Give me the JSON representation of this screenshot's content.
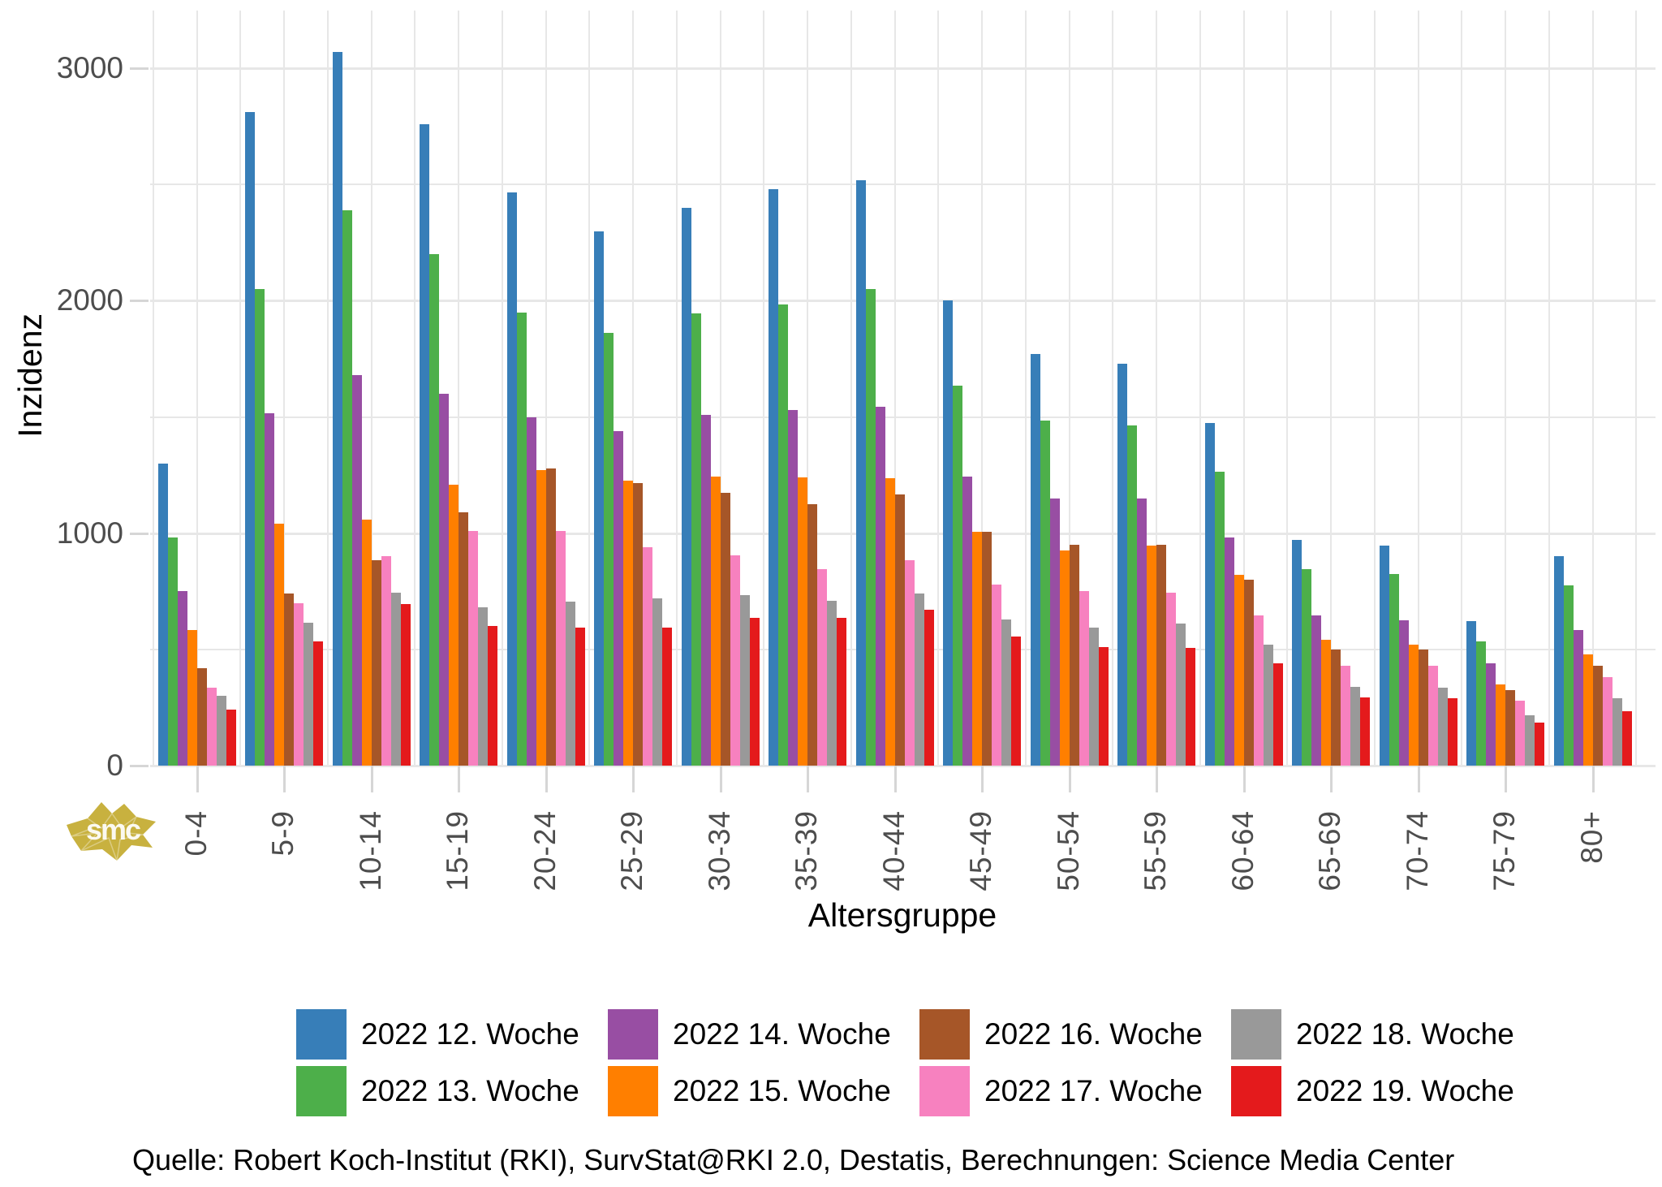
{
  "chart_data": {
    "type": "bar",
    "title": "",
    "xlabel": "Altersgruppe",
    "ylabel": "Inzidenz",
    "ylim": [
      0,
      3250
    ],
    "yticks": [
      0,
      1000,
      2000,
      3000
    ],
    "gridline_step": 500,
    "grid": true,
    "legend_position": "bottom",
    "categories": [
      "0-4",
      "5-9",
      "10-14",
      "15-19",
      "20-24",
      "25-29",
      "30-34",
      "35-39",
      "40-44",
      "45-49",
      "50-54",
      "55-59",
      "60-64",
      "65-69",
      "70-74",
      "75-79",
      "80+"
    ],
    "series": [
      {
        "name": "2022 12. Woche",
        "color": "#377EB8",
        "values": [
          1300,
          2810,
          3070,
          2760,
          2465,
          2300,
          2400,
          2480,
          2520,
          2000,
          1770,
          1730,
          1475,
          970,
          945,
          620,
          900
        ]
      },
      {
        "name": "2022 13. Woche",
        "color": "#4DAF4A",
        "values": [
          980,
          2050,
          2390,
          2200,
          1950,
          1860,
          1945,
          1985,
          2050,
          1635,
          1485,
          1465,
          1265,
          845,
          825,
          535,
          775
        ]
      },
      {
        "name": "2022 14. Woche",
        "color": "#984EA3",
        "values": [
          750,
          1515,
          1680,
          1600,
          1500,
          1440,
          1510,
          1530,
          1545,
          1245,
          1150,
          1150,
          980,
          645,
          625,
          440,
          585
        ]
      },
      {
        "name": "2022 15. Woche",
        "color": "#FF7F00",
        "values": [
          585,
          1040,
          1060,
          1210,
          1270,
          1225,
          1245,
          1240,
          1235,
          1005,
          925,
          945,
          820,
          540,
          520,
          350,
          480
        ]
      },
      {
        "name": "2022 16. Woche",
        "color": "#A65628",
        "values": [
          420,
          740,
          885,
          1090,
          1280,
          1215,
          1175,
          1125,
          1165,
          1005,
          950,
          950,
          800,
          500,
          500,
          325,
          430
        ]
      },
      {
        "name": "2022 17. Woche",
        "color": "#F781BF",
        "values": [
          335,
          700,
          900,
          1010,
          1010,
          940,
          905,
          845,
          885,
          780,
          750,
          745,
          645,
          430,
          430,
          280,
          380
        ]
      },
      {
        "name": "2022 18. Woche",
        "color": "#999999",
        "values": [
          300,
          615,
          745,
          680,
          705,
          720,
          735,
          710,
          740,
          630,
          595,
          610,
          520,
          340,
          335,
          215,
          290
        ]
      },
      {
        "name": "2022 19. Woche",
        "color": "#E41A1C",
        "values": [
          240,
          535,
          695,
          600,
          595,
          595,
          635,
          635,
          670,
          555,
          510,
          505,
          440,
          295,
          290,
          185,
          235
        ]
      }
    ]
  },
  "logo": {
    "text": "smc",
    "color": "#C8B13F"
  },
  "source_note": "Quelle: Robert Koch-Institut (RKI), SurvStat@RKI 2.0, Destatis, Berechnungen: Science Media Center"
}
